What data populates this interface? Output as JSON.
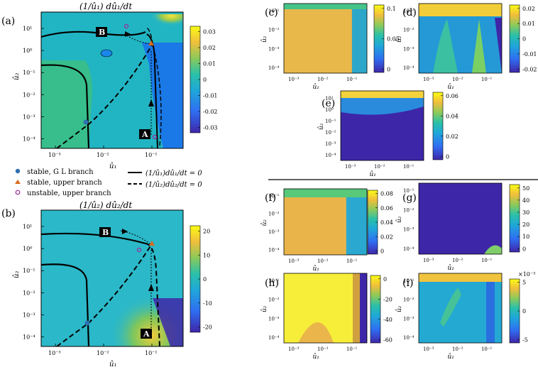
{
  "figure": {
    "separator": true
  },
  "chart_data": [
    {
      "id": "a",
      "label": "(a)",
      "type": "heatmap",
      "title": "(1/û₁) dû₁/dt",
      "xlabel": "û₁",
      "ylabel": "û₂",
      "xticks": [
        "10⁻³",
        "10⁻²",
        "10⁻¹"
      ],
      "yticks": [
        "10¹",
        "10⁰",
        "10⁻¹",
        "10⁻²",
        "10⁻³",
        "10⁻⁴"
      ],
      "colorbar": {
        "ticks": [
          "0.03",
          "0.02",
          "0.01",
          "0",
          "-0.01",
          "-0.02",
          "-0.03"
        ],
        "range": [
          -0.035,
          0.035
        ]
      },
      "annotations": [
        "B",
        "A"
      ]
    },
    {
      "id": "b",
      "label": "(b)",
      "type": "heatmap",
      "title": "(1/û₂) dû₂/dt",
      "xlabel": "û₁",
      "ylabel": "û₂",
      "xticks": [
        "10⁻³",
        "10⁻²",
        "10⁻¹"
      ],
      "yticks": [
        "10¹",
        "10⁰",
        "10⁻¹",
        "10⁻²",
        "10⁻³",
        "10⁻⁴"
      ],
      "colorbar": {
        "ticks": [
          "20",
          "10",
          "0",
          "-10",
          "-20"
        ],
        "range": [
          -25,
          25
        ]
      },
      "annotations": [
        "B",
        "A"
      ]
    },
    {
      "id": "c",
      "label": "(c)",
      "type": "heatmap",
      "xlabel": "û₁",
      "ylabel": "û₂",
      "xticks": [
        "10⁻³",
        "10⁻²",
        "10⁻¹"
      ],
      "yticks": [
        "10⁻¹",
        "10⁻²",
        "10⁻³",
        "10⁻⁴"
      ],
      "colorbar": {
        "ticks": [
          "0.1",
          "0.05",
          "0"
        ],
        "range": [
          0,
          0.12
        ]
      }
    },
    {
      "id": "d",
      "label": "(d)",
      "type": "heatmap",
      "xlabel": "û₁",
      "ylabel": "û₂",
      "xticks": [
        "10⁻³",
        "10⁻²",
        "10⁻¹"
      ],
      "yticks": [
        "10⁻¹",
        "10⁻²",
        "10⁻³",
        "10⁻⁴"
      ],
      "colorbar": {
        "ticks": [
          "0.02",
          "0.01",
          "0",
          "-0.01",
          "-0.02"
        ],
        "range": [
          -0.025,
          0.025
        ]
      }
    },
    {
      "id": "e",
      "label": "(e)",
      "type": "heatmap",
      "xlabel": "û₁",
      "ylabel": "û₂",
      "xticks": [
        "10⁻³",
        "10⁻²",
        "10⁻¹"
      ],
      "yticks": [
        "10¹",
        "10⁰",
        "10⁻¹",
        "10⁻²",
        "10⁻³",
        "10⁻⁴"
      ],
      "colorbar": {
        "ticks": [
          "0.06",
          "0.04",
          "0.02",
          "0"
        ],
        "range": [
          0,
          0.06
        ]
      }
    },
    {
      "id": "f",
      "label": "(f)",
      "type": "heatmap",
      "xlabel": "û₁",
      "ylabel": "û₂",
      "xticks": [
        "10⁻³",
        "10⁻²",
        "10⁻¹"
      ],
      "yticks": [
        "10⁻¹",
        "10⁻²",
        "10⁻³",
        "10⁻⁴"
      ],
      "colorbar": {
        "ticks": [
          "0.08",
          "0.06",
          "0.04",
          "0.02",
          "0"
        ],
        "range": [
          0,
          0.09
        ]
      }
    },
    {
      "id": "g",
      "label": "(g)",
      "type": "heatmap",
      "xlabel": "û₁",
      "ylabel": "û₂",
      "xticks": [
        "10⁻³",
        "10⁻²",
        "10⁻¹"
      ],
      "yticks": [
        "10⁻¹",
        "10⁻²",
        "10⁻³",
        "10⁻⁴"
      ],
      "colorbar": {
        "ticks": [
          "50",
          "40",
          "30",
          "20",
          "10",
          "0"
        ],
        "range": [
          0,
          52
        ]
      }
    },
    {
      "id": "h",
      "label": "(h)",
      "type": "heatmap",
      "xlabel": "û₁",
      "ylabel": "û₂",
      "xticks": [
        "10⁻³",
        "10⁻²",
        "10⁻¹"
      ],
      "yticks": [
        "10⁻¹",
        "10⁻²",
        "10⁻³",
        "10⁻⁴"
      ],
      "colorbar": {
        "ticks": [
          "0",
          "-20",
          "-40",
          "-60"
        ],
        "range": [
          -65,
          0
        ]
      }
    },
    {
      "id": "i",
      "label": "(i)",
      "type": "heatmap",
      "xlabel": "û₁",
      "ylabel": "û₂",
      "xticks": [
        "10⁻³",
        "10⁻²",
        "10⁻¹"
      ],
      "yticks": [
        "10⁻¹",
        "10⁻²",
        "10⁻³",
        "10⁻⁴"
      ],
      "colorbar": {
        "ticks": [
          "5",
          "0",
          "-5"
        ],
        "range": [
          -8,
          8
        ],
        "multiplier": "×10⁻³"
      }
    }
  ],
  "legend": {
    "markers": [
      {
        "label": "stable, G L branch",
        "color": "#2e6fb0",
        "shape": "hexagon"
      },
      {
        "label": "stable, upper branch",
        "color": "#d96a1c",
        "shape": "triangle"
      },
      {
        "label": "unstable, upper branch",
        "color": "#9a2a9a",
        "shape": "circle"
      }
    ],
    "lines": [
      {
        "label": "(1/û₁)dû₁/dt = 0",
        "style": "solid"
      },
      {
        "label": "(1/û₂)dû₂/dt = 0",
        "style": "dashed"
      }
    ]
  }
}
